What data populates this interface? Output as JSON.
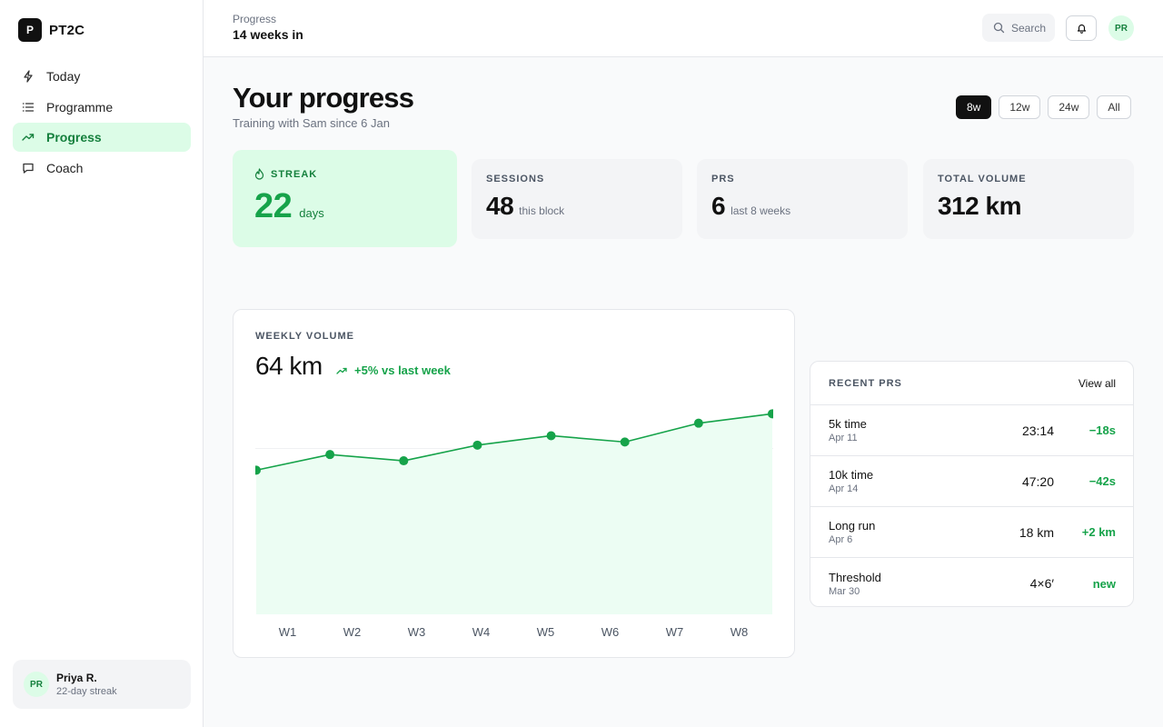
{
  "app": {
    "brand_letter": "P",
    "brand_name": "PT2C"
  },
  "sidebar": {
    "items": [
      {
        "label": "Today",
        "icon": "lightning-icon",
        "active": false
      },
      {
        "label": "Programme",
        "icon": "list-icon",
        "active": false
      },
      {
        "label": "Progress",
        "icon": "trending-up-icon",
        "active": true
      },
      {
        "label": "Coach",
        "icon": "chat-icon",
        "active": false
      }
    ],
    "user": {
      "initials": "PR",
      "name": "Priya R.",
      "subtitle": "22-day streak"
    }
  },
  "topbar": {
    "crumb_label": "Progress",
    "crumb_title": "14 weeks in",
    "search_placeholder": "Search",
    "avatar_initials": "PR"
  },
  "header": {
    "title": "Your progress",
    "subtitle": "Training with Sam since 6 Jan",
    "ranges": [
      "8w",
      "12w",
      "24w",
      "All"
    ],
    "active_range": "8w"
  },
  "stats": {
    "streak": {
      "label": "STREAK",
      "value": "22",
      "unit": "days"
    },
    "sessions": {
      "label": "SESSIONS",
      "value": "48",
      "unit": "this block"
    },
    "prs": {
      "label": "PRS",
      "value": "6",
      "unit": "last 8 weeks"
    },
    "total_volume": {
      "label": "TOTAL VOLUME",
      "value": "312 km"
    }
  },
  "weekly_volume": {
    "label": "WEEKLY VOLUME",
    "current": "64 km",
    "delta": "+5% vs last week"
  },
  "chart_data": {
    "type": "area",
    "x": [
      "W1",
      "W2",
      "W3",
      "W4",
      "W5",
      "W6",
      "W7",
      "W8"
    ],
    "series": [
      {
        "values": [
          46,
          51,
          49,
          54,
          57,
          55,
          61,
          64
        ]
      }
    ],
    "ylim": [
      0,
      67
    ],
    "color": "#16a34a",
    "fill_color": "#ecfdf3"
  },
  "recent_prs": {
    "title": "RECENT PRS",
    "link": "View all",
    "rows": [
      {
        "name": "5k time",
        "date": "Apr 11",
        "value": "23:14",
        "delta": "−18s"
      },
      {
        "name": "10k time",
        "date": "Apr 14",
        "value": "47:20",
        "delta": "−42s"
      },
      {
        "name": "Long run",
        "date": "Apr 6",
        "value": "18 km",
        "delta": "+2 km"
      },
      {
        "name": "Threshold",
        "date": "Mar 30",
        "value": "4×6′",
        "delta": "new"
      }
    ]
  },
  "colors": {
    "accent": "#16a34a",
    "accent_soft": "#dcfce7",
    "text": "#111111",
    "muted": "#6b7280"
  }
}
